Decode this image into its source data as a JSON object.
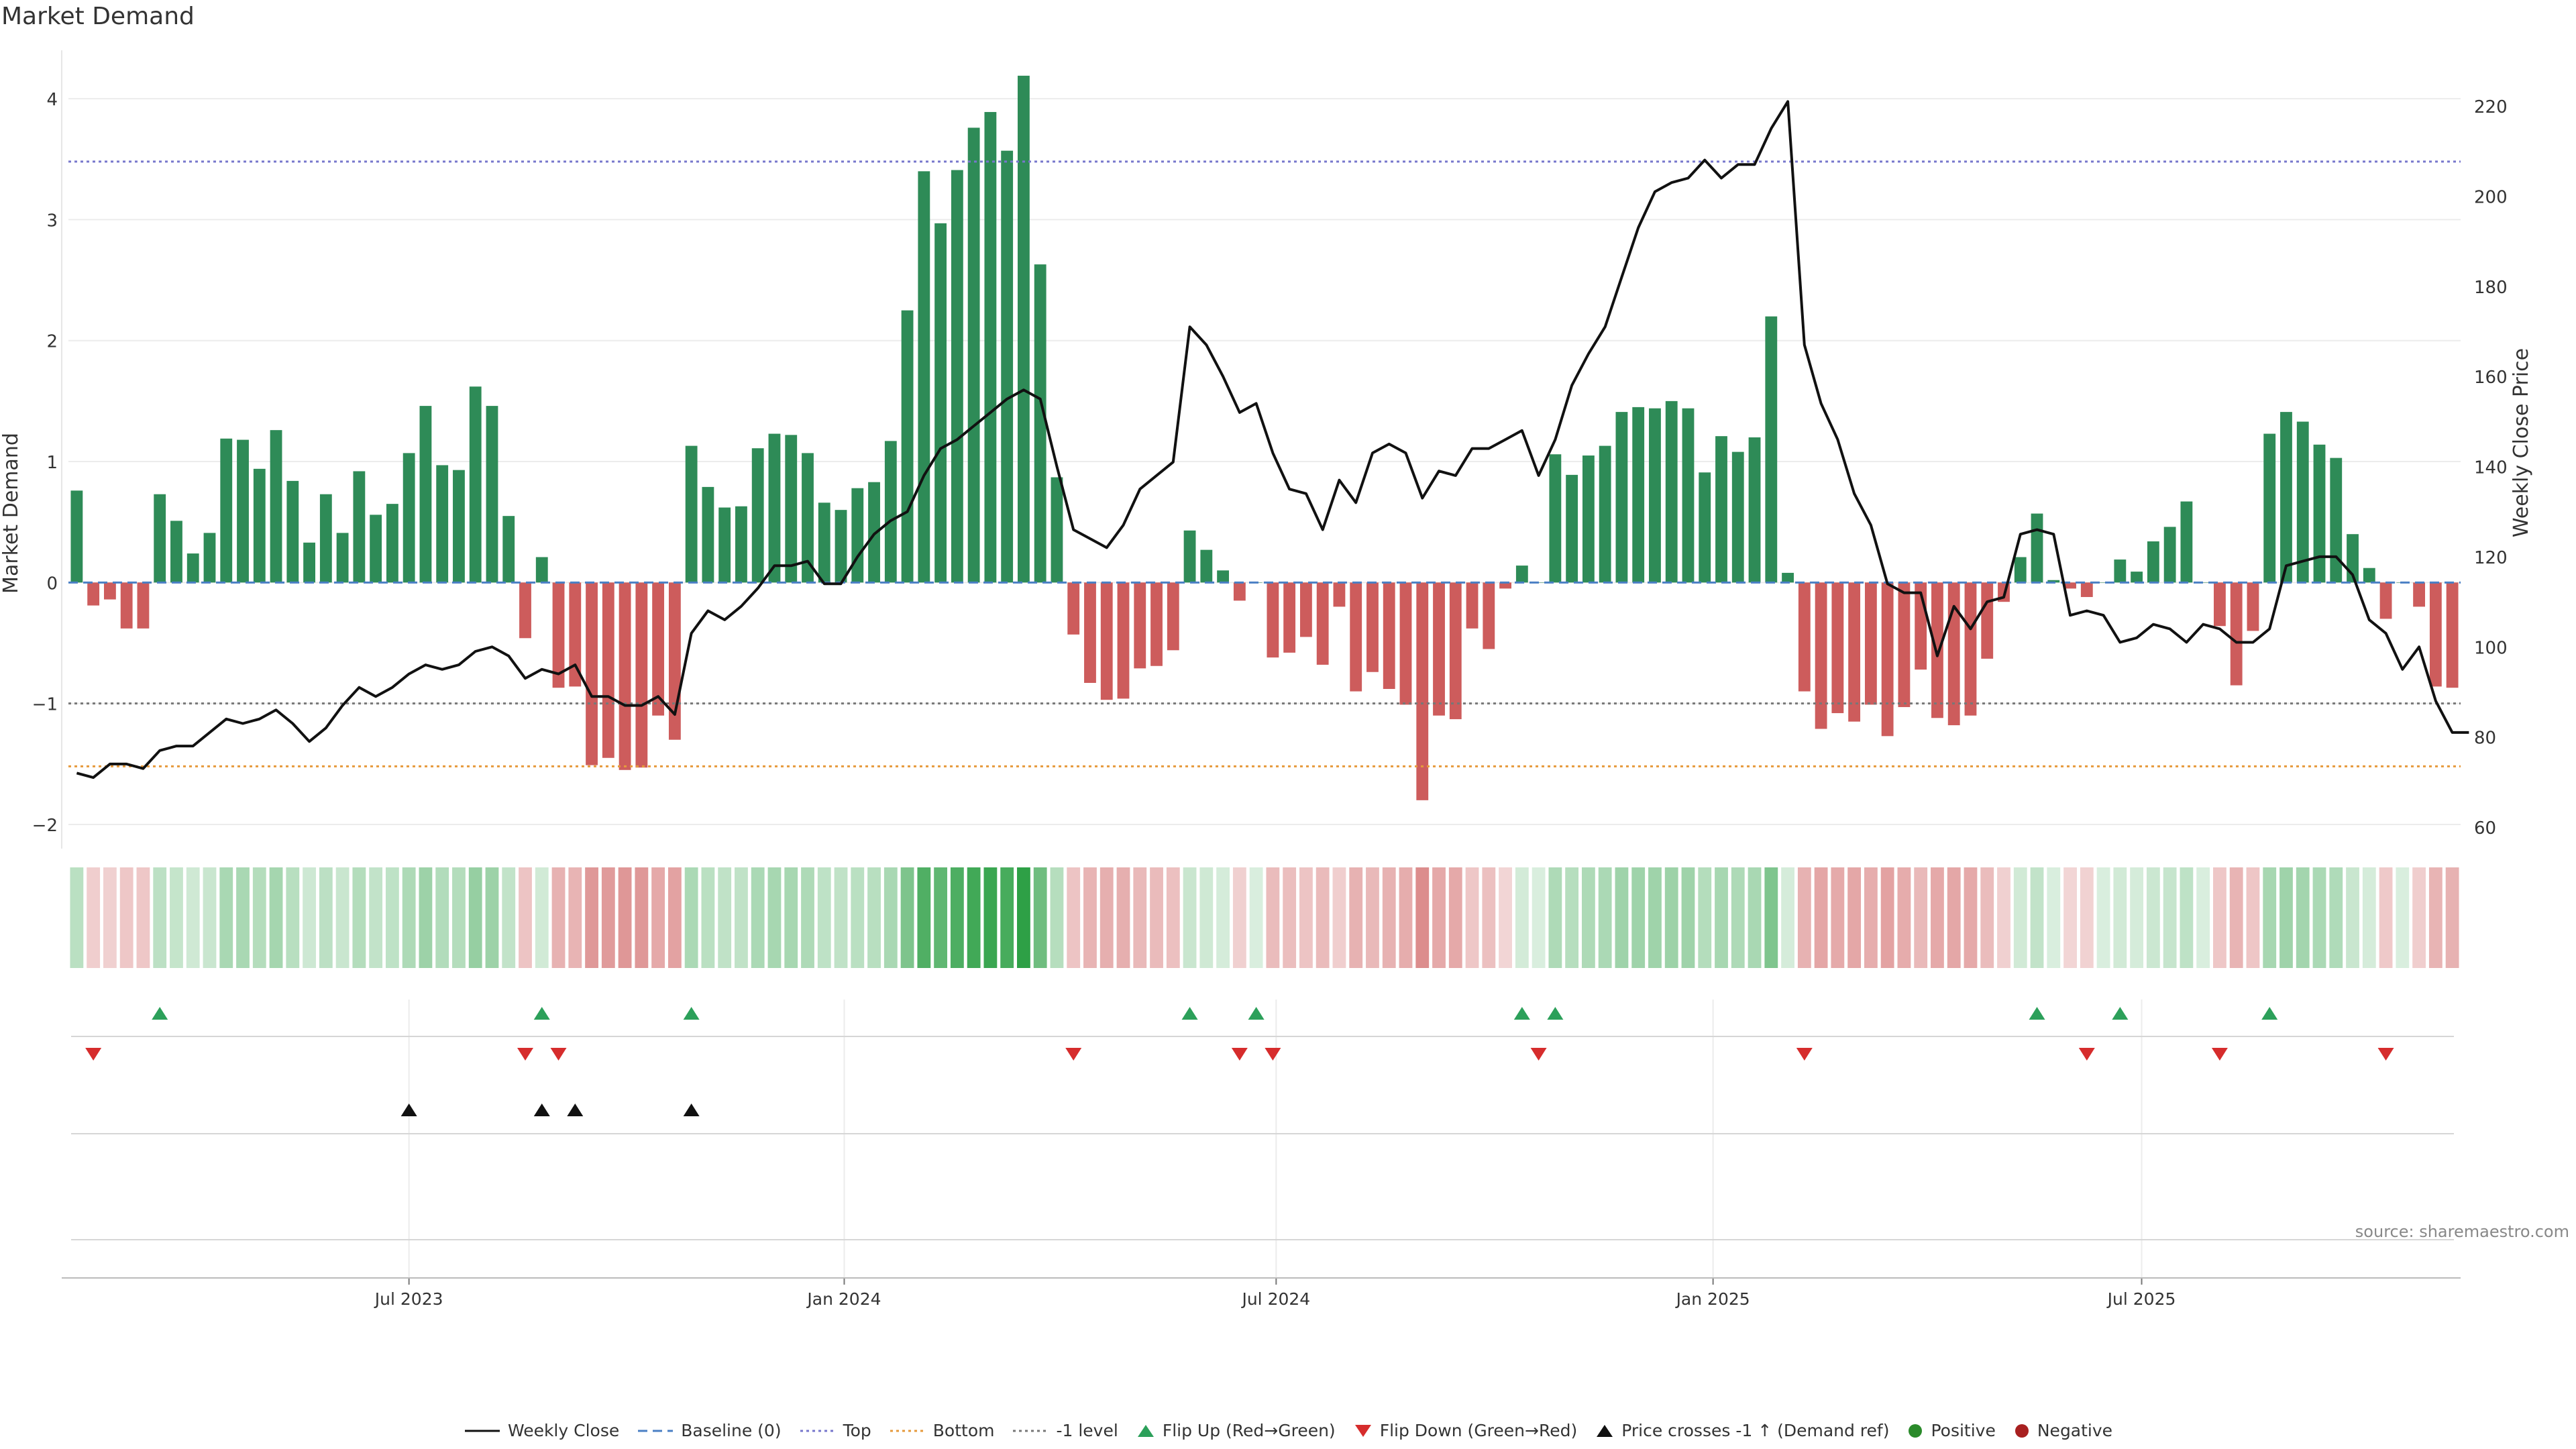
{
  "chart_data": {
    "type": "bar",
    "title": "Market Demand",
    "source": "source: sharemaestro.com",
    "y_left": {
      "label": "Market Demand",
      "lim": [
        -2.2,
        4.4
      ],
      "ticks": [
        "−2",
        "−1",
        "0",
        "1",
        "2",
        "3",
        "4"
      ],
      "tick_values": [
        -2,
        -1,
        0,
        1,
        2,
        3,
        4
      ]
    },
    "y_right": {
      "label": "Weekly Close Price",
      "lim": [
        60,
        225
      ],
      "ticks": [
        "60",
        "80",
        "100",
        "120",
        "140",
        "160",
        "180",
        "200",
        "220"
      ],
      "tick_values": [
        60,
        80,
        100,
        120,
        140,
        160,
        180,
        200,
        220
      ]
    },
    "x_ticks": [
      {
        "label": "Jul 2023",
        "week": 20.5
      },
      {
        "label": "Jan 2024",
        "week": 46.7
      },
      {
        "label": "Jul 2024",
        "week": 72.7
      },
      {
        "label": "Jan 2025",
        "week": 99.0
      },
      {
        "label": "Jul 2025",
        "week": 124.8
      }
    ],
    "reference_lines": {
      "top": 3.48,
      "bottom": -1.52,
      "minus_one": -1.0,
      "baseline": 0
    },
    "colors": {
      "positive": "#2e8b57",
      "negative": "#cd5c5c",
      "price": "#111111",
      "top": "#7777cc",
      "bottom": "#e69a3c",
      "minus_one": "#777777",
      "baseline": "#4a7fc4",
      "flip_up": "#2ca05a",
      "flip_down": "#d62c2c",
      "cross": "#111111",
      "dot_positive": "#2a8a2a",
      "dot_negative": "#a82020"
    },
    "demand": [
      0.76,
      -0.19,
      -0.14,
      -0.38,
      -0.38,
      0.73,
      0.51,
      0.24,
      0.41,
      1.19,
      1.18,
      0.94,
      1.26,
      0.84,
      0.33,
      0.73,
      0.41,
      0.92,
      0.56,
      0.65,
      1.07,
      1.46,
      0.97,
      0.93,
      1.62,
      1.46,
      0.55,
      -0.46,
      0.21,
      -0.87,
      -0.86,
      -1.51,
      -1.45,
      -1.55,
      -1.53,
      -1.1,
      -1.3,
      1.13,
      0.79,
      0.62,
      0.63,
      1.11,
      1.23,
      1.22,
      1.07,
      0.66,
      0.6,
      0.78,
      0.83,
      1.17,
      2.25,
      3.4,
      2.97,
      3.41,
      3.76,
      3.89,
      3.57,
      4.19,
      2.63,
      0.87,
      -0.43,
      -0.83,
      -0.97,
      -0.96,
      -0.71,
      -0.69,
      -0.56,
      0.43,
      0.27,
      0.1,
      -0.15,
      0.0,
      -0.62,
      -0.58,
      -0.45,
      -0.68,
      -0.2,
      -0.9,
      -0.74,
      -0.88,
      -1.01,
      -1.8,
      -1.1,
      -1.13,
      -0.38,
      -0.55,
      -0.05,
      0.14,
      0.0,
      1.06,
      0.89,
      1.05,
      1.13,
      1.41,
      1.45,
      1.44,
      1.5,
      1.44,
      0.91,
      1.21,
      1.08,
      1.2,
      2.2,
      0.08,
      -0.9,
      -1.21,
      -1.08,
      -1.15,
      -1.01,
      -1.27,
      -1.03,
      -0.72,
      -1.12,
      -1.18,
      -1.1,
      -0.63,
      -0.16,
      0.21,
      0.57,
      0.02,
      -0.05,
      -0.12,
      0.0,
      0.19,
      0.09,
      0.34,
      0.46,
      0.67,
      0.0,
      -0.36,
      -0.85,
      -0.4,
      1.23,
      1.41,
      1.33,
      1.14,
      1.03,
      0.4,
      0.12,
      -0.3,
      0.0,
      -0.2,
      -0.86,
      -0.87
    ],
    "price": [
      72,
      71,
      74,
      74,
      73,
      77,
      78,
      78,
      81,
      84,
      83,
      84,
      86,
      83,
      79,
      82,
      87,
      91,
      89,
      91,
      94,
      96,
      95,
      96,
      99,
      100,
      98,
      93,
      95,
      94,
      96,
      89,
      89,
      87,
      87,
      89,
      85,
      103,
      108,
      106,
      109,
      113,
      118,
      118,
      119,
      114,
      114,
      120,
      125,
      128,
      130,
      138,
      144,
      146,
      149,
      152,
      155,
      157,
      155,
      140,
      126,
      124,
      122,
      127,
      135,
      138,
      141,
      171,
      167,
      160,
      152,
      154,
      143,
      135,
      134,
      126,
      137,
      132,
      143,
      145,
      143,
      133,
      139,
      138,
      144,
      144,
      146,
      148,
      138,
      146,
      158,
      165,
      171,
      182,
      193,
      201,
      203,
      204,
      208,
      204,
      207,
      207,
      215,
      221,
      167,
      154,
      146,
      134,
      127,
      114,
      112,
      112,
      98,
      109,
      104,
      110,
      111,
      125,
      126,
      125,
      107,
      108,
      107,
      101,
      102,
      105,
      104,
      101,
      105,
      104,
      101,
      101,
      104,
      118,
      119,
      120,
      120,
      116,
      106,
      103,
      95,
      100,
      88,
      81,
      81
    ],
    "flip_up_weeks": [
      5,
      28,
      37,
      67,
      71,
      87,
      89,
      118,
      123,
      132
    ],
    "flip_down_weeks": [
      1,
      27,
      29,
      60,
      70,
      72,
      88,
      104,
      121,
      129,
      139
    ],
    "cross_weeks": [
      20,
      28,
      30,
      37
    ]
  },
  "legend": [
    {
      "label": "Weekly Close",
      "icon": "line-icon"
    },
    {
      "label": "Baseline (0)",
      "icon": "dashed-line-icon"
    },
    {
      "label": "Top",
      "icon": "dotted-line-icon"
    },
    {
      "label": "Bottom",
      "icon": "dotted-line-icon"
    },
    {
      "label": "-1 level",
      "icon": "dotted-line-icon"
    },
    {
      "label": "Flip Up (Red→Green)",
      "icon": "triangle-up-icon"
    },
    {
      "label": "Flip Down (Green→Red)",
      "icon": "triangle-down-icon"
    },
    {
      "label": "Price crosses -1 ↑ (Demand ref)",
      "icon": "triangle-up-icon"
    },
    {
      "label": "Positive",
      "icon": "circle-icon"
    },
    {
      "label": "Negative",
      "icon": "circle-icon"
    }
  ]
}
